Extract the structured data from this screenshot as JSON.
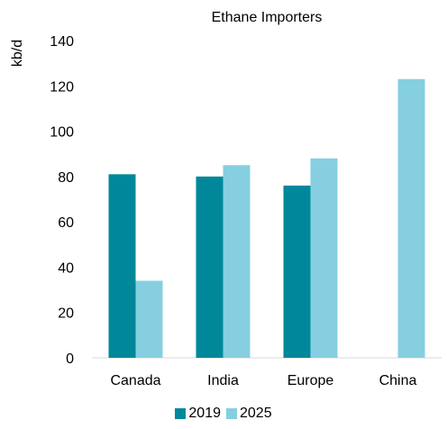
{
  "chart_data": {
    "type": "bar",
    "title": "Ethane Importers",
    "ylabel": "kb/d",
    "xlabel": "",
    "categories": [
      "Canada",
      "India",
      "Europe",
      "China"
    ],
    "series": [
      {
        "name": "2019",
        "values": [
          81,
          80,
          76,
          null
        ],
        "color": "#00889a"
      },
      {
        "name": "2025",
        "values": [
          34,
          85,
          88,
          123
        ],
        "color": "#85cfe0"
      }
    ],
    "ylim": [
      0,
      140
    ],
    "yticks": [
      "0",
      "20",
      "40",
      "60",
      "80",
      "100",
      "120",
      "140"
    ],
    "grid": false,
    "legend_position": "bottom"
  }
}
